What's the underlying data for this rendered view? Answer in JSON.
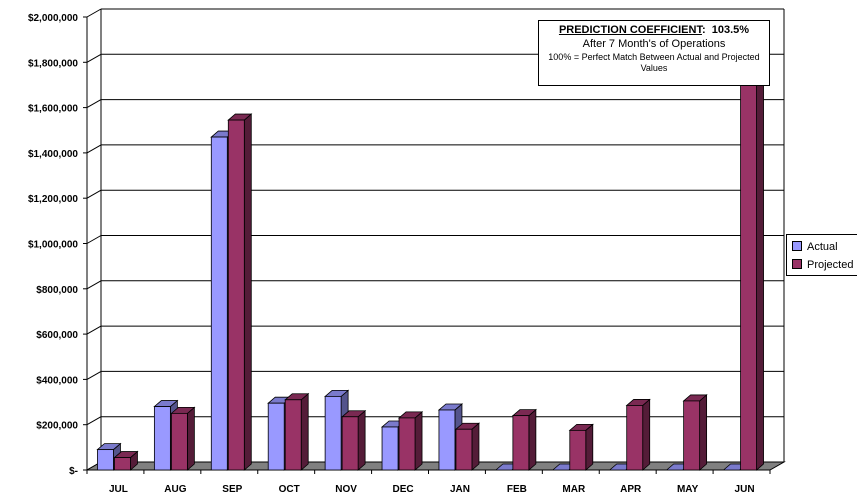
{
  "chart_data": {
    "type": "bar",
    "title": "",
    "xlabel": "",
    "ylabel": "",
    "categories": [
      "JUL",
      "AUG",
      "SEP",
      "OCT",
      "NOV",
      "DEC",
      "JAN",
      "FEB",
      "MAR",
      "APR",
      "MAY",
      "JUN"
    ],
    "series": [
      {
        "name": "Actual",
        "color": "#9999ff",
        "values": [
          90000,
          280000,
          1470000,
          295000,
          325000,
          190000,
          265000,
          0,
          0,
          0,
          0,
          0
        ]
      },
      {
        "name": "Projected",
        "color": "#993366",
        "values": [
          55000,
          250000,
          1545000,
          310000,
          235000,
          230000,
          180000,
          240000,
          175000,
          285000,
          305000,
          1790000
        ]
      }
    ],
    "ylim": [
      0,
      2000000
    ],
    "yticks": [
      0,
      200000,
      400000,
      600000,
      800000,
      1000000,
      1200000,
      1400000,
      1600000,
      1800000,
      2000000
    ],
    "ytick_labels": [
      "$-",
      "$200,000",
      "$400,000",
      "$600,000",
      "$800,000",
      "$1,000,000",
      "$1,200,000",
      "$1,400,000",
      "$1,600,000",
      "$1,800,000",
      "$2,000,000"
    ],
    "grid": true,
    "legend": "right",
    "three_d": true
  },
  "annotation": {
    "heading": "PREDICTION COEFFICIENT",
    "heading_suffix": ":",
    "value": "103.5%",
    "line2": "After 7 Month's of Operations",
    "line3": "100% = Perfect Match Between Actual and Projected Values"
  },
  "legend_labels": {
    "actual": "Actual",
    "projected": "Projected"
  }
}
